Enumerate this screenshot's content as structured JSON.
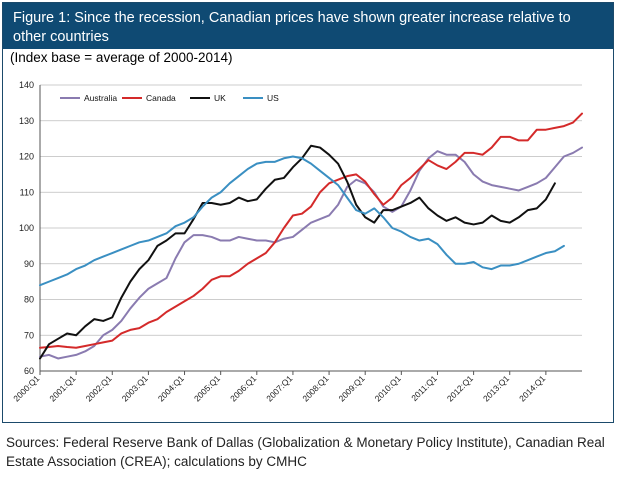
{
  "figure": {
    "title": "Figure 1: Since the recession, Canadian prices have shown greater increase relative to other countries",
    "subtitle": "(Index base = average of 2000-2014)"
  },
  "sources": "Sources: Federal Reserve Bank of Dallas (Globalization & Monetary Policy Institute), Canadian Real Estate Association (CREA); calculations by CMHC",
  "chart_data": {
    "type": "line",
    "title": "Figure 1: Since the recession, Canadian prices have shown greater increase relative to other countries",
    "subtitle": "(Index base = average of 2000-2014)",
    "xlabel": "",
    "ylabel": "",
    "ylim": [
      60,
      140
    ],
    "yticks": [
      "60",
      "70",
      "80",
      "90",
      "100",
      "110",
      "120",
      "130",
      "140"
    ],
    "x_tick_labels": [
      "2000:Q1",
      "2001:Q1",
      "2002:Q1",
      "2003:Q1",
      "2004:Q1",
      "2005:Q1",
      "2006:Q1",
      "2007:Q1",
      "2008:Q1",
      "2009:Q1",
      "2010:Q1",
      "2011:Q1",
      "2012:Q1",
      "2013:Q1",
      "2014:Q1"
    ],
    "x_start_year": 2000,
    "quarters_per_year": 4,
    "grid": "horizontal",
    "legend_position": "top-left",
    "series": [
      {
        "name": "Australia",
        "color": "#8a7bb0",
        "values": [
          64.0,
          64.5,
          63.5,
          64.0,
          64.5,
          65.5,
          67.0,
          70.0,
          71.5,
          74.0,
          77.5,
          80.5,
          83.0,
          84.5,
          86.0,
          91.5,
          96.0,
          98.0,
          98.0,
          97.5,
          96.5,
          96.5,
          97.5,
          97.0,
          96.5,
          96.5,
          96.0,
          97.0,
          97.5,
          99.5,
          101.5,
          102.5,
          103.5,
          106.5,
          111.5,
          113.5,
          112.5,
          110.0,
          106.0,
          104.5,
          106.0,
          110.5,
          116.0,
          119.5,
          121.5,
          120.5,
          120.5,
          118.5,
          115.0,
          113.0,
          112.0,
          111.5,
          111.0,
          110.5,
          111.5,
          112.5,
          114.0,
          117.0,
          120.0,
          121.0,
          122.5
        ]
      },
      {
        "name": "Canada",
        "color": "#d42a2a",
        "values": [
          66.5,
          66.7,
          67.0,
          66.7,
          66.5,
          67.0,
          67.5,
          68.0,
          68.5,
          70.5,
          71.5,
          72.0,
          73.5,
          74.5,
          76.5,
          78.0,
          79.5,
          81.0,
          83.0,
          85.5,
          86.5,
          86.5,
          88.0,
          90.0,
          91.5,
          93.0,
          96.0,
          100.0,
          103.5,
          104.0,
          106.0,
          110.0,
          112.5,
          113.5,
          114.5,
          115.0,
          113.0,
          109.5,
          106.5,
          108.5,
          112.0,
          114.0,
          116.5,
          119.0,
          117.5,
          116.5,
          118.5,
          121.0,
          121.0,
          120.5,
          122.5,
          125.5,
          125.5,
          124.5,
          124.5,
          127.5,
          127.5,
          128.0,
          128.5,
          129.5,
          132.0
        ]
      },
      {
        "name": "UK",
        "color": "#111111",
        "values": [
          63.5,
          67.5,
          69.0,
          70.5,
          70.0,
          72.5,
          74.5,
          74.0,
          75.0,
          80.5,
          85.0,
          88.5,
          91.0,
          95.0,
          96.5,
          98.5,
          98.5,
          102.5,
          107.0,
          107.0,
          106.5,
          107.0,
          108.5,
          107.5,
          108.0,
          111.0,
          113.5,
          114.0,
          117.0,
          119.5,
          123.0,
          122.5,
          120.5,
          118.0,
          113.0,
          106.5,
          103.0,
          101.5,
          105.0,
          105.0,
          106.0,
          107.0,
          108.5,
          105.5,
          103.5,
          102.0,
          103.0,
          101.5,
          101.0,
          101.5,
          103.5,
          102.0,
          101.5,
          103.0,
          105.0,
          105.5,
          108.0,
          112.5
        ]
      },
      {
        "name": "US",
        "color": "#3a8fc2",
        "values": [
          84.0,
          85.0,
          86.0,
          87.0,
          88.5,
          89.5,
          91.0,
          92.0,
          93.0,
          94.0,
          95.0,
          96.0,
          96.5,
          97.5,
          98.5,
          100.5,
          101.5,
          103.0,
          106.0,
          108.5,
          110.0,
          112.5,
          114.5,
          116.5,
          118.0,
          118.5,
          118.5,
          119.5,
          120.0,
          119.5,
          118.0,
          116.0,
          114.0,
          112.0,
          108.5,
          105.0,
          104.0,
          105.5,
          103.0,
          100.0,
          99.0,
          97.5,
          96.5,
          97.0,
          95.5,
          92.5,
          90.0,
          90.0,
          90.5,
          89.0,
          88.5,
          89.5,
          89.5,
          90.0,
          91.0,
          92.0,
          93.0,
          93.5,
          95.0
        ]
      }
    ]
  }
}
